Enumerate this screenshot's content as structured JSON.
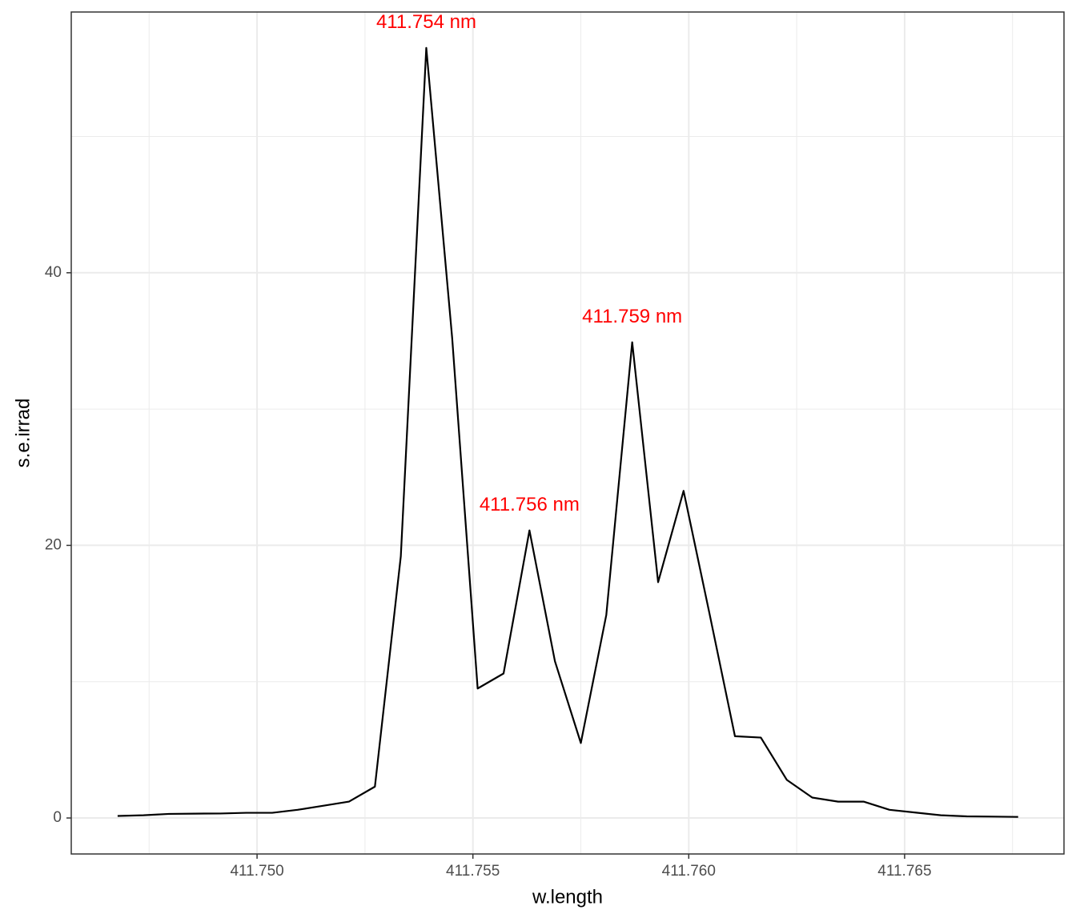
{
  "chart_data": {
    "type": "line",
    "x_label": "w.length",
    "y_label": "s.e.irrad",
    "x": [
      411.74677,
      411.74737,
      411.74796,
      411.74856,
      411.74915,
      411.74975,
      411.75035,
      411.75094,
      411.75154,
      411.75213,
      411.75273,
      411.75333,
      411.75392,
      411.75452,
      411.75511,
      411.75571,
      411.75631,
      411.7569,
      411.7575,
      411.75809,
      411.75869,
      411.75929,
      411.75988,
      411.76048,
      411.76107,
      411.76167,
      411.76227,
      411.76286,
      411.76346,
      411.76405,
      411.76465,
      411.76525,
      411.76584,
      411.76644,
      411.76703,
      411.76763
    ],
    "series": [
      {
        "color": "#000000",
        "values": [
          0.15,
          0.2,
          0.3,
          0.32,
          0.33,
          0.38,
          0.38,
          0.6,
          0.9,
          1.2,
          2.3,
          19.2,
          56.5,
          35.2,
          9.5,
          10.6,
          21.1,
          11.5,
          5.5,
          14.9,
          34.9,
          17.3,
          24.0,
          15.0,
          6.0,
          5.9,
          2.8,
          1.5,
          1.2,
          1.2,
          0.6,
          0.4,
          0.2,
          0.12,
          0.1,
          0.08
        ]
      }
    ],
    "annotations": [
      {
        "text": "411.754 nm",
        "x": 411.75392,
        "y": 56.5,
        "color": "#ff0000"
      },
      {
        "text": "411.756 nm",
        "x": 411.75631,
        "y": 21.1,
        "color": "#ff0000"
      },
      {
        "text": "411.759 nm",
        "x": 411.75869,
        "y": 34.9,
        "color": "#ff0000"
      }
    ],
    "xlim": [
      411.745696,
      411.768692
    ],
    "ylim": [
      -2.64,
      59.13
    ],
    "xticks": [
      {
        "value": 411.75,
        "label": "411.750"
      },
      {
        "value": 411.755,
        "label": "411.755"
      },
      {
        "value": 411.76,
        "label": "411.760"
      },
      {
        "value": 411.765,
        "label": "411.765"
      }
    ],
    "yticks": [
      0,
      20,
      40
    ],
    "x_minor_grid": [
      411.7475,
      411.7525,
      411.7575,
      411.7625,
      411.7675
    ],
    "y_minor_grid": [
      10,
      30,
      50
    ],
    "grid": true
  }
}
